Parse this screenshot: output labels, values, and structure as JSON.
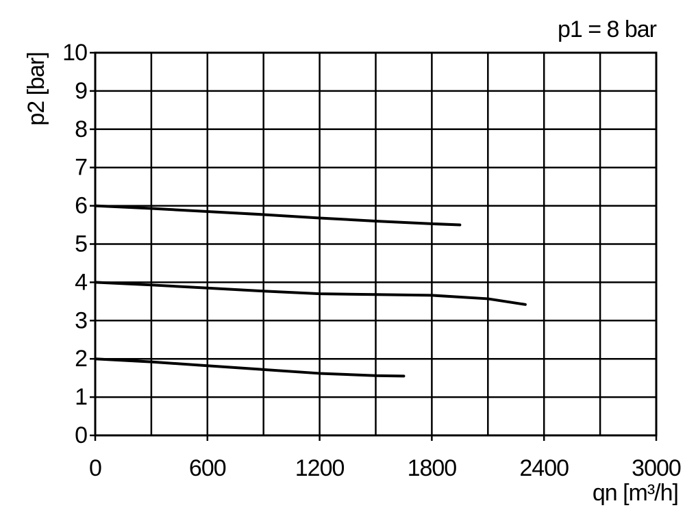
{
  "chart_data": {
    "type": "line",
    "annotation": "p1 = 8 bar",
    "x_label": "qn [m³/h]",
    "y_label": "p2 [bar]",
    "xlim": [
      0,
      3000
    ],
    "xticks": [
      0,
      600,
      1200,
      1800,
      2400,
      3000
    ],
    "xgrid": [
      0,
      300,
      600,
      900,
      1200,
      1500,
      1800,
      2100,
      2400,
      2700,
      3000
    ],
    "ylim": [
      0,
      10
    ],
    "yticks": [
      0,
      1,
      2,
      3,
      4,
      5,
      6,
      7,
      8,
      9,
      10
    ],
    "grid": true,
    "series": [
      {
        "color": "#000000",
        "x": [
          0,
          300,
          600,
          900,
          1200,
          1500,
          1800,
          1950
        ],
        "values": [
          6,
          5.93,
          5.85,
          5.77,
          5.68,
          5.6,
          5.53,
          5.5
        ]
      },
      {
        "color": "#000000",
        "x": [
          0,
          300,
          600,
          900,
          1200,
          1500,
          1800,
          2100,
          2300
        ],
        "values": [
          4,
          3.93,
          3.85,
          3.77,
          3.7,
          3.68,
          3.66,
          3.57,
          3.42
        ]
      },
      {
        "color": "#000000",
        "x": [
          0,
          300,
          600,
          900,
          1200,
          1500,
          1650
        ],
        "values": [
          2,
          1.92,
          1.82,
          1.72,
          1.62,
          1.56,
          1.55
        ]
      }
    ]
  }
}
